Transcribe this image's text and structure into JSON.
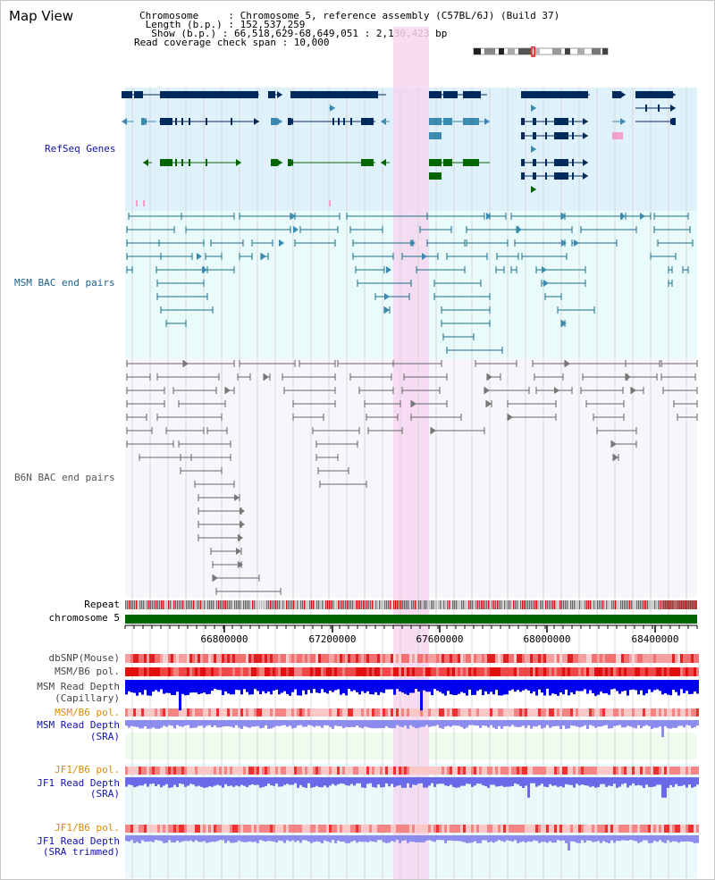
{
  "view": {
    "title": "Map View"
  },
  "info": {
    "chromosome": "Chromosome     : Chromosome 5, reference assembly (C57BL/6J) (Build 37)",
    "length": " Length (b.p.) : 152,537,259",
    "show": "  Show (b.p.) : 66,518,629-68,649,051 : 2,130,423 bp",
    "span": "Read coverage check span : 10,000"
  },
  "tracks": {
    "refseq": "RefSeq Genes",
    "msm_bac": "MSM BAC end pairs",
    "b6n_bac": "B6N BAC end pairs",
    "repeat": "Repeat",
    "chrom": "chromosome 5",
    "dbsnp": "dbSNP(Mouse)",
    "msm_pol": "MSM/B6 pol.",
    "msm_depth_cap_1": "MSM Read Depth",
    "msm_depth_cap_2": "(Capillary)",
    "msm_pol2": "MSM/B6 pol.",
    "msm_depth_sra_1": "MSM Read Depth",
    "msm_depth_sra_2": "(SRA)",
    "jf1_pol": "JF1/B6 pol.",
    "jf1_depth_1": "JF1 Read Depth",
    "jf1_depth_2": "(SRA)",
    "jf1_pol2": "JF1/B6 pol.",
    "jf1_trim_1": "JF1 Read Depth",
    "jf1_trim_2": "(SRA trimmed)"
  },
  "axis": {
    "ticks": [
      "66800000",
      "67200000",
      "67600000",
      "68000000",
      "68400000"
    ]
  },
  "colors": {
    "refseq_bg": "#dff1fb",
    "msm_bg": "#e9fbfb",
    "b6n_bg": "#f7f7fb",
    "highlight": "#f6d6f0",
    "chrom_bar": "#006600",
    "gene_dark": "#002a5c",
    "gene_mid": "#3b8bb0",
    "gene_green": "#006400",
    "msm_line": "#1c6e8a",
    "b6n_line": "#666666",
    "depth_blue": "#0000ee"
  }
}
